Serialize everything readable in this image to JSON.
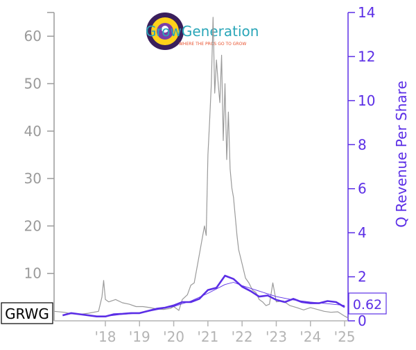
{
  "chart_data": {
    "type": "line",
    "ticker": "GRWG",
    "current_value_label": "0.62",
    "logo": {
      "name": "GrowGeneration",
      "tagline": "WHERE THE PROS GO TO GROW"
    },
    "colors": {
      "price": "#9a9a9a",
      "revenue": "#5b2ee6",
      "revenue_thin": "#5b2ee6",
      "left_axis": "#9a9a9a",
      "right_axis": "#5b2ee6",
      "x_axis": "#b4b4b4"
    },
    "axes": {
      "x": {
        "range": [
          2016.5,
          2025.1
        ],
        "ticks": [
          2018,
          2019,
          2020,
          2021,
          2022,
          2023,
          2024,
          2025
        ],
        "tick_labels": [
          "'18",
          "'19",
          "'20",
          "'21",
          "'22",
          "'23",
          "'24",
          "'25"
        ]
      },
      "y_left": {
        "range": [
          0,
          65
        ],
        "ticks": [
          10,
          20,
          30,
          40,
          50,
          60
        ],
        "tick_labels": [
          "10",
          "20",
          "30",
          "40",
          "50",
          "60"
        ]
      },
      "y_right": {
        "label": "Q Revenue Per Share",
        "range": [
          0,
          14
        ],
        "ticks": [
          0,
          2,
          4,
          6,
          8,
          10,
          12,
          14
        ],
        "tick_labels": [
          "0",
          "2",
          "4",
          "6",
          "8",
          "10",
          "12",
          "14"
        ]
      }
    },
    "series": [
      {
        "axis": "left",
        "x": [
          2016.5,
          2016.8,
          2017.0,
          2017.3,
          2017.5,
          2017.8,
          2017.9,
          2017.95,
          2018.0,
          2018.1,
          2018.3,
          2018.5,
          2018.7,
          2018.9,
          2019.1,
          2019.3,
          2019.5,
          2019.7,
          2019.9,
          2020.0,
          2020.15,
          2020.25,
          2020.4,
          2020.5,
          2020.6,
          2020.7,
          2020.8,
          2020.9,
          2020.95,
          2021.0,
          2021.05,
          2021.1,
          2021.15,
          2021.2,
          2021.25,
          2021.3,
          2021.35,
          2021.4,
          2021.45,
          2021.5,
          2021.55,
          2021.6,
          2021.65,
          2021.7,
          2021.75,
          2021.8,
          2021.85,
          2021.9,
          2022.0,
          2022.1,
          2022.2,
          2022.3,
          2022.4,
          2022.5,
          2022.6,
          2022.7,
          2022.8,
          2022.9,
          2023.0,
          2023.2,
          2023.4,
          2023.6,
          2023.8,
          2024.0,
          2024.2,
          2024.4,
          2024.6,
          2024.8,
          2025.0,
          2025.1
        ],
        "y": [
          2.0,
          1.8,
          1.5,
          1.4,
          1.6,
          2.0,
          5.0,
          8.5,
          4.5,
          4.0,
          4.5,
          3.8,
          3.5,
          3.0,
          3.0,
          2.8,
          2.5,
          2.4,
          2.6,
          3.0,
          2.2,
          4.5,
          5.5,
          7.5,
          8.0,
          12.0,
          16.0,
          20.0,
          18.0,
          35.0,
          42.0,
          50.0,
          64.0,
          48.0,
          55.0,
          50.0,
          46.0,
          56.0,
          38.0,
          50.0,
          34.0,
          44.0,
          32.0,
          28.0,
          26.0,
          22.0,
          18.0,
          15.0,
          12.0,
          9.0,
          8.0,
          6.5,
          6.0,
          4.5,
          4.0,
          3.2,
          3.5,
          8.0,
          4.0,
          4.2,
          3.2,
          2.8,
          2.3,
          2.8,
          2.4,
          2.0,
          1.8,
          1.9,
          1.0,
          0.62
        ]
      },
      {
        "axis": "right",
        "x": [
          2016.75,
          2017.0,
          2017.25,
          2017.5,
          2017.75,
          2018.0,
          2018.25,
          2018.5,
          2018.75,
          2019.0,
          2019.25,
          2019.5,
          2019.75,
          2020.0,
          2020.25,
          2020.5,
          2020.75,
          2021.0,
          2021.25,
          2021.5,
          2021.75,
          2022.0,
          2022.25,
          2022.5,
          2022.75,
          2023.0,
          2023.25,
          2023.5,
          2023.75,
          2024.0,
          2024.25,
          2024.5,
          2024.75,
          2025.0
        ],
        "y": [
          0.25,
          0.35,
          0.3,
          0.25,
          0.2,
          0.2,
          0.3,
          0.32,
          0.35,
          0.35,
          0.45,
          0.55,
          0.6,
          0.7,
          0.85,
          0.85,
          1.0,
          1.4,
          1.5,
          2.05,
          1.9,
          1.55,
          1.35,
          1.1,
          1.15,
          0.95,
          0.85,
          1.0,
          0.85,
          0.8,
          0.8,
          0.9,
          0.85,
          0.62
        ]
      },
      {
        "axis": "right",
        "x": [
          2018.0,
          2018.5,
          2019.0,
          2019.5,
          2020.0,
          2020.5,
          2021.0,
          2021.5,
          2021.75,
          2022.0,
          2022.5,
          2023.0,
          2023.5,
          2024.0,
          2024.5,
          2025.0
        ],
        "y": [
          0.2,
          0.3,
          0.35,
          0.5,
          0.65,
          0.9,
          1.25,
          1.65,
          1.75,
          1.6,
          1.35,
          1.1,
          0.95,
          0.85,
          0.78,
          0.7
        ]
      }
    ]
  }
}
